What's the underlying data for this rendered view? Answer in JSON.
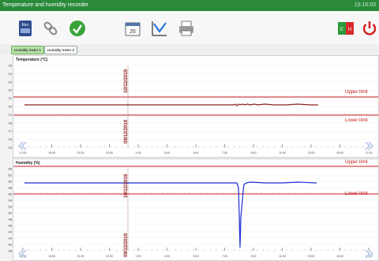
{
  "window": {
    "title": "Temperature and humidity recorder",
    "clock": "15:16:03"
  },
  "toolbar": {
    "buttons": [
      {
        "name": "export-icon"
      },
      {
        "name": "link-icon"
      },
      {
        "name": "refresh-icon"
      },
      {
        "name": "calendar-icon"
      },
      {
        "name": "chart-icon"
      },
      {
        "name": "printer-icon"
      },
      {
        "name": "language-flag-icon"
      },
      {
        "name": "power-icon"
      }
    ]
  },
  "tabs": [
    {
      "label": "Humidity meter 1",
      "active": true
    },
    {
      "label": "Humidity meter 2",
      "active": false
    }
  ],
  "temperature_chart": {
    "title": "Temperature (°C)",
    "y_ticks": [
      "26",
      "24",
      "23",
      "22",
      "21",
      "20",
      "19",
      "18",
      "17",
      "16",
      "15"
    ],
    "x_ticks": [
      "17:00",
      "19:00",
      "21:00",
      "23:00",
      "1:00",
      "3:00",
      "5:00",
      "7:00",
      "9:00",
      "11:00",
      "13:00",
      "15:00",
      "17:00"
    ],
    "upper_label": "Upper limit",
    "lower_label": "Lower limit",
    "date_top": "10/12/2019",
    "date_bottom": "09/12/2019"
  },
  "humidity_chart": {
    "title": "Humidity (%)",
    "y_ticks": [
      "65",
      "62",
      "60",
      "58",
      "56",
      "54",
      "52",
      "50",
      "48",
      "46",
      "44",
      "42",
      "40",
      "38"
    ],
    "x_ticks": [
      "17:00",
      "19:00",
      "21:00",
      "23:00",
      "1:00",
      "3:00",
      "5:00",
      "7:00",
      "9:00",
      "11:00",
      "13:00",
      "15:00",
      "17:00"
    ],
    "upper_label": "Upper limit",
    "lower_label": "Lower limit",
    "date_top": "10/12/2019",
    "date_bottom": "09/12/2019"
  },
  "colors": {
    "accent": "#2a8a3a",
    "limit": "#c31b1b",
    "temp_line": "#8a2020",
    "hum_line": "#1b2fd6"
  }
}
